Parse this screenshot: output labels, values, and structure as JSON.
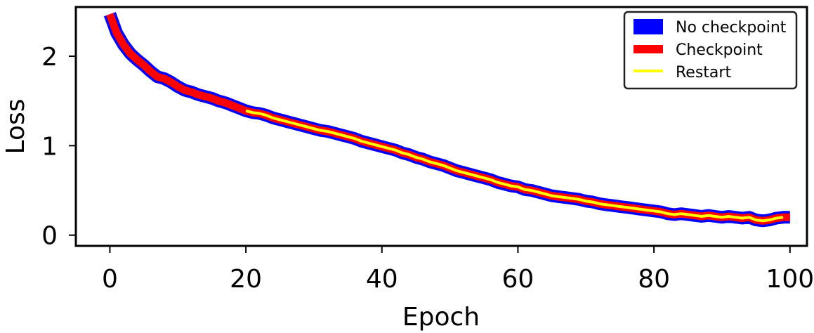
{
  "chart_data": {
    "type": "line",
    "title": "",
    "xlabel": "Epoch",
    "ylabel": "Loss",
    "xlim": [
      -5,
      102.5
    ],
    "ylim": [
      -0.12,
      2.55
    ],
    "x_ticks": [
      0,
      20,
      40,
      60,
      80,
      100
    ],
    "y_ticks": [
      0,
      1,
      2
    ],
    "grid": false,
    "legend_position": "top-right",
    "series": [
      {
        "name": "No checkpoint",
        "color": "#0000ff",
        "x": [
          0,
          1,
          2,
          3,
          4,
          5,
          6,
          7,
          8,
          9,
          10,
          11,
          12,
          13,
          14,
          15,
          16,
          17,
          18,
          19,
          20,
          21,
          22,
          23,
          24,
          25,
          26,
          27,
          28,
          29,
          30,
          31,
          32,
          33,
          34,
          35,
          36,
          37,
          38,
          39,
          40,
          41,
          42,
          43,
          44,
          45,
          46,
          47,
          48,
          49,
          50,
          51,
          52,
          53,
          54,
          55,
          56,
          57,
          58,
          59,
          60,
          61,
          62,
          63,
          64,
          65,
          66,
          67,
          68,
          69,
          70,
          71,
          72,
          73,
          74,
          75,
          76,
          77,
          78,
          79,
          80,
          81,
          82,
          83,
          84,
          85,
          86,
          87,
          88,
          89,
          90,
          91,
          92,
          93,
          94,
          95,
          96,
          97,
          98,
          99,
          100
        ],
        "y": [
          2.47,
          2.26,
          2.13,
          2.03,
          1.96,
          1.9,
          1.83,
          1.77,
          1.75,
          1.71,
          1.66,
          1.62,
          1.6,
          1.57,
          1.55,
          1.53,
          1.5,
          1.48,
          1.45,
          1.42,
          1.39,
          1.37,
          1.36,
          1.34,
          1.31,
          1.29,
          1.27,
          1.25,
          1.23,
          1.21,
          1.19,
          1.17,
          1.16,
          1.14,
          1.12,
          1.1,
          1.08,
          1.05,
          1.03,
          1.01,
          0.99,
          0.97,
          0.95,
          0.92,
          0.9,
          0.87,
          0.85,
          0.82,
          0.8,
          0.78,
          0.75,
          0.72,
          0.7,
          0.68,
          0.66,
          0.64,
          0.62,
          0.59,
          0.57,
          0.55,
          0.54,
          0.51,
          0.5,
          0.48,
          0.46,
          0.44,
          0.43,
          0.42,
          0.41,
          0.4,
          0.38,
          0.37,
          0.35,
          0.34,
          0.33,
          0.32,
          0.31,
          0.3,
          0.29,
          0.28,
          0.27,
          0.26,
          0.24,
          0.23,
          0.24,
          0.23,
          0.22,
          0.21,
          0.22,
          0.21,
          0.2,
          0.21,
          0.2,
          0.19,
          0.2,
          0.17,
          0.16,
          0.17,
          0.19,
          0.2,
          0.2
        ]
      },
      {
        "name": "Checkpoint",
        "color": "#ff0000",
        "x": [
          0,
          1,
          2,
          3,
          4,
          5,
          6,
          7,
          8,
          9,
          10,
          11,
          12,
          13,
          14,
          15,
          16,
          17,
          18,
          19,
          20,
          21,
          22,
          23,
          24,
          25,
          26,
          27,
          28,
          29,
          30,
          31,
          32,
          33,
          34,
          35,
          36,
          37,
          38,
          39,
          40,
          41,
          42,
          43,
          44,
          45,
          46,
          47,
          48,
          49,
          50,
          51,
          52,
          53,
          54,
          55,
          56,
          57,
          58,
          59,
          60,
          61,
          62,
          63,
          64,
          65,
          66,
          67,
          68,
          69,
          70,
          71,
          72,
          73,
          74,
          75,
          76,
          77,
          78,
          79,
          80,
          81,
          82,
          83,
          84,
          85,
          86,
          87,
          88,
          89,
          90,
          91,
          92,
          93,
          94,
          95,
          96,
          97,
          98,
          99,
          100
        ],
        "y": [
          2.47,
          2.26,
          2.13,
          2.03,
          1.96,
          1.9,
          1.83,
          1.77,
          1.75,
          1.71,
          1.66,
          1.62,
          1.6,
          1.57,
          1.55,
          1.53,
          1.5,
          1.48,
          1.45,
          1.42,
          1.39,
          1.37,
          1.36,
          1.34,
          1.31,
          1.29,
          1.27,
          1.25,
          1.23,
          1.21,
          1.19,
          1.17,
          1.16,
          1.14,
          1.12,
          1.1,
          1.08,
          1.05,
          1.03,
          1.01,
          0.99,
          0.97,
          0.95,
          0.92,
          0.9,
          0.87,
          0.85,
          0.82,
          0.8,
          0.78,
          0.75,
          0.72,
          0.7,
          0.68,
          0.66,
          0.64,
          0.62,
          0.59,
          0.57,
          0.55,
          0.54,
          0.51,
          0.5,
          0.48,
          0.46,
          0.44,
          0.43,
          0.42,
          0.41,
          0.4,
          0.38,
          0.37,
          0.35,
          0.34,
          0.33,
          0.32,
          0.31,
          0.3,
          0.29,
          0.28,
          0.27,
          0.26,
          0.24,
          0.23,
          0.24,
          0.23,
          0.22,
          0.21,
          0.22,
          0.21,
          0.2,
          0.21,
          0.2,
          0.19,
          0.2,
          0.17,
          0.16,
          0.17,
          0.19,
          0.2,
          0.2
        ]
      },
      {
        "name": "Restart",
        "color": "#ffff00",
        "x": [
          20,
          21,
          22,
          23,
          24,
          25,
          26,
          27,
          28,
          29,
          30,
          31,
          32,
          33,
          34,
          35,
          36,
          37,
          38,
          39,
          40,
          41,
          42,
          43,
          44,
          45,
          46,
          47,
          48,
          49,
          50,
          51,
          52,
          53,
          54,
          55,
          56,
          57,
          58,
          59,
          60,
          61,
          62,
          63,
          64,
          65,
          66,
          67,
          68,
          69,
          70,
          71,
          72,
          73,
          74,
          75,
          76,
          77,
          78,
          79,
          80,
          81,
          82,
          83,
          84,
          85,
          86,
          87,
          88,
          89,
          90,
          91,
          92,
          93,
          94,
          95,
          96,
          97,
          98,
          99
        ],
        "y": [
          1.39,
          1.37,
          1.36,
          1.34,
          1.31,
          1.29,
          1.27,
          1.25,
          1.23,
          1.21,
          1.19,
          1.17,
          1.16,
          1.14,
          1.12,
          1.1,
          1.08,
          1.05,
          1.03,
          1.01,
          0.99,
          0.97,
          0.95,
          0.92,
          0.9,
          0.87,
          0.85,
          0.82,
          0.8,
          0.78,
          0.75,
          0.72,
          0.7,
          0.68,
          0.66,
          0.64,
          0.62,
          0.59,
          0.57,
          0.55,
          0.54,
          0.51,
          0.5,
          0.48,
          0.46,
          0.44,
          0.43,
          0.42,
          0.41,
          0.4,
          0.38,
          0.37,
          0.35,
          0.34,
          0.33,
          0.32,
          0.31,
          0.3,
          0.29,
          0.28,
          0.27,
          0.26,
          0.24,
          0.23,
          0.24,
          0.23,
          0.22,
          0.21,
          0.22,
          0.21,
          0.2,
          0.21,
          0.2,
          0.19,
          0.2,
          0.17,
          0.16,
          0.17,
          0.19,
          0.2
        ]
      }
    ]
  }
}
